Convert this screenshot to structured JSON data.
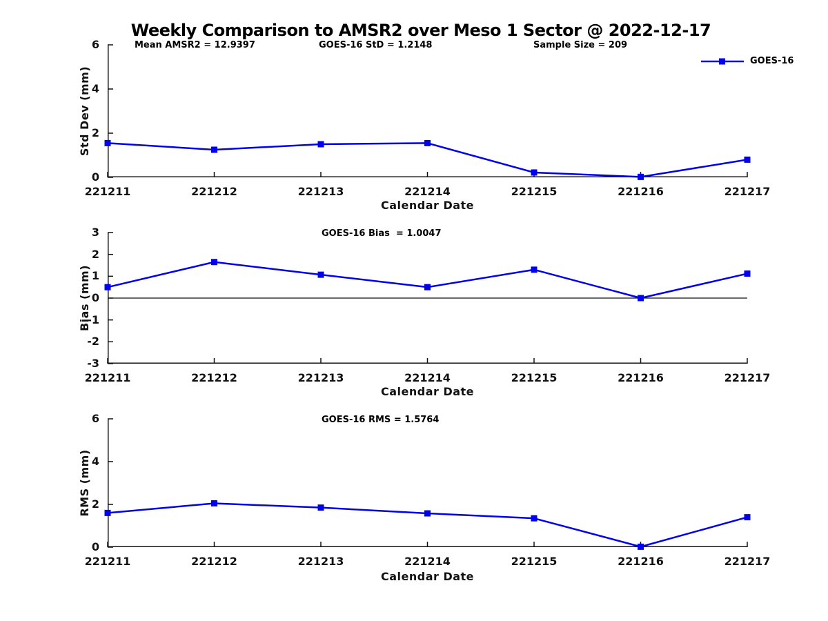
{
  "title": "Weekly Comparison to AMSR2 over Meso 1 Sector @ 2022-12-17",
  "header_stats": {
    "mean_amsr2": "Mean AMSR2 = 12.9397",
    "goes16_std": "GOES-16 StD = 1.2148",
    "sample_size": "Sample Size = 209"
  },
  "legend": {
    "label": "GOES-16",
    "marker": "square",
    "position": "top-right"
  },
  "colors": {
    "series": "#0000EE",
    "axis": "#111111",
    "text": "#000000",
    "background": "#ffffff"
  },
  "chart_data": [
    {
      "type": "line",
      "annotation": "",
      "xlabel": "Calendar Date",
      "ylabel": "Std Dev (mm)",
      "categories": [
        "221211",
        "221212",
        "221213",
        "221214",
        "221215",
        "221216",
        "221217"
      ],
      "series": [
        {
          "name": "GOES-16",
          "values": [
            1.55,
            1.25,
            1.5,
            1.55,
            0.22,
            0.02,
            0.8
          ]
        }
      ],
      "ylim": [
        0,
        6
      ],
      "yticks": [
        0,
        2,
        4,
        6
      ],
      "zero_line": false,
      "grid": false,
      "marker": "square"
    },
    {
      "type": "line",
      "annotation": "GOES-16 Bias  = 1.0047",
      "xlabel": "Calendar Date",
      "ylabel": "Bias (mm)",
      "categories": [
        "221211",
        "221212",
        "221213",
        "221214",
        "221215",
        "221216",
        "221217"
      ],
      "series": [
        {
          "name": "GOES-16",
          "values": [
            0.5,
            1.65,
            1.07,
            0.5,
            1.3,
            0.0,
            1.12
          ]
        }
      ],
      "ylim": [
        -3,
        3
      ],
      "yticks": [
        -3,
        -2,
        -1,
        0,
        1,
        2,
        3
      ],
      "zero_line": true,
      "grid": false,
      "marker": "square"
    },
    {
      "type": "line",
      "annotation": "GOES-16 RMS = 1.5764",
      "xlabel": "Calendar Date",
      "ylabel": "RMS (mm)",
      "categories": [
        "221211",
        "221212",
        "221213",
        "221214",
        "221215",
        "221216",
        "221217"
      ],
      "series": [
        {
          "name": "GOES-16",
          "values": [
            1.6,
            2.05,
            1.85,
            1.58,
            1.35,
            0.02,
            1.4
          ]
        }
      ],
      "ylim": [
        0,
        6
      ],
      "yticks": [
        0,
        2,
        4,
        6
      ],
      "zero_line": false,
      "grid": false,
      "marker": "square"
    }
  ]
}
